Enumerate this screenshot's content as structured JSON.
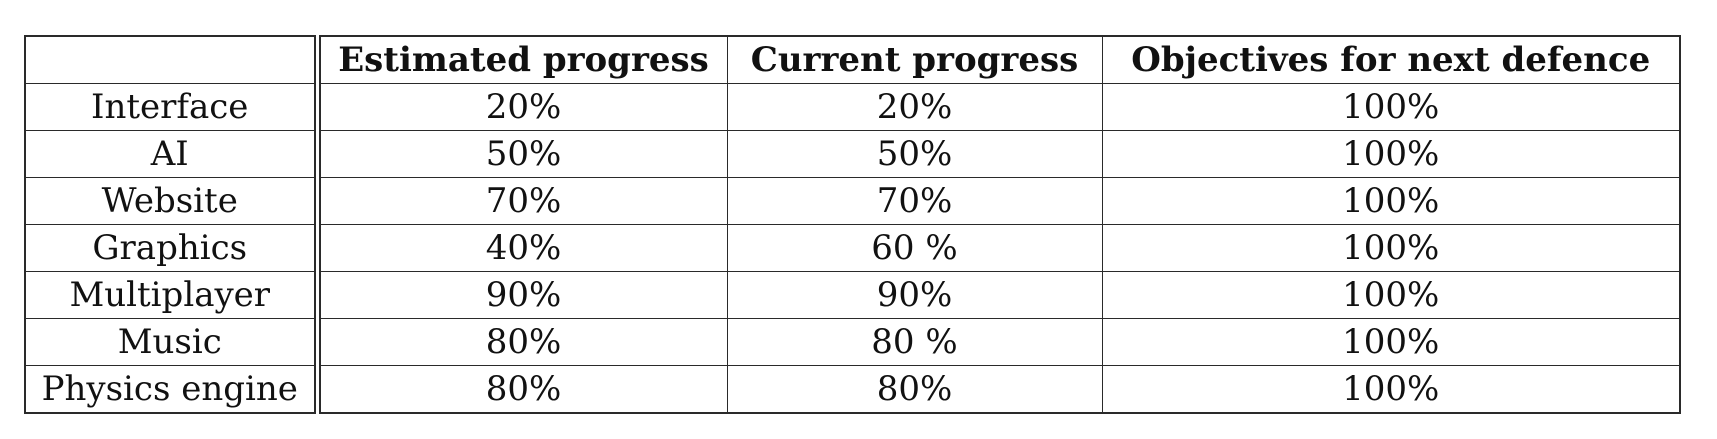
{
  "table": {
    "columns": [
      "",
      "Estimated progress",
      "Current progress",
      "Objectives for next defence"
    ],
    "rows": [
      {
        "label": "Interface",
        "estimated": "20%",
        "current": "20%",
        "objective": "100%"
      },
      {
        "label": "AI",
        "estimated": "50%",
        "current": "50%",
        "objective": "100%"
      },
      {
        "label": "Website",
        "estimated": "70%",
        "current": "70%",
        "objective": "100%"
      },
      {
        "label": "Graphics",
        "estimated": "40%",
        "current": "60 %",
        "objective": "100%"
      },
      {
        "label": "Multiplayer",
        "estimated": "90%",
        "current": "90%",
        "objective": "100%"
      },
      {
        "label": "Music",
        "estimated": "80%",
        "current": "80 %",
        "objective": "100%"
      },
      {
        "label": "Physics engine",
        "estimated": "80%",
        "current": "80%",
        "objective": "100%"
      }
    ]
  }
}
